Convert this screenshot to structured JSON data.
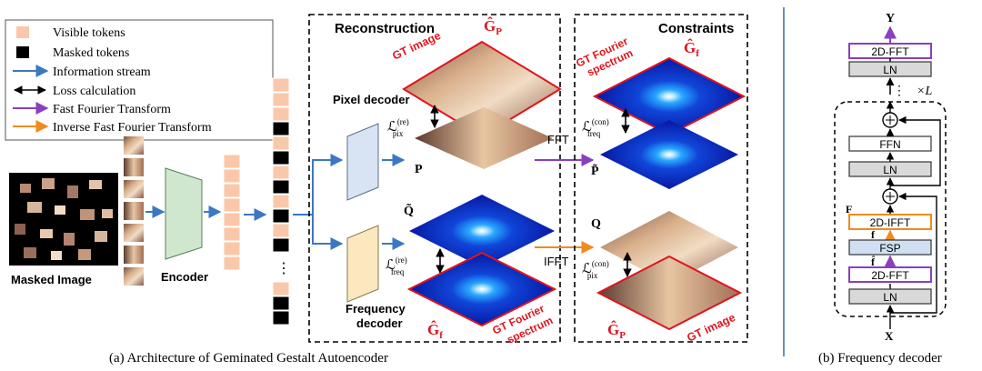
{
  "legend": {
    "visible_tokens": "Visible tokens",
    "masked_tokens": "Masked tokens",
    "information_stream": "Information stream",
    "loss_calculation": "Loss calculation",
    "fft": "Fast Fourier Transform",
    "ifft": "Inverse Fast Fourier Transform"
  },
  "labels": {
    "masked_image": "Masked Image",
    "encoder": "Encoder",
    "reconstruction": "Reconstruction",
    "constraints": "Constraints",
    "pixel_decoder": "Pixel decoder",
    "frequency_decoder_line1": "Frequency",
    "frequency_decoder_line2": "decoder",
    "gt_image": "GT image",
    "gt_fourier_line1": "GT Fourier",
    "gt_fourier_line2": "spectrum",
    "fft_arrow": "FFT",
    "ifft_arrow": "IFFT",
    "ellipsis": "⋮",
    "times_l": "×L"
  },
  "math": {
    "G_p": "Ĝ",
    "G_p_sub": "P",
    "G_f": "Ĝ",
    "G_f_sub": "f",
    "P": "P",
    "P_tilde": "P̃",
    "Q": "Q",
    "Q_tilde": "Q̃",
    "L": "ℒ",
    "pix_re_sup": "(re)",
    "pix_sub": "pix",
    "freq_re_sup": "(re)",
    "freq_sub": "freq",
    "freq_con_sup": "(con)",
    "pix_con_sup": "(con)",
    "F": "F",
    "f": "f",
    "f_hat": "f̂",
    "X": "X",
    "Y": "Y"
  },
  "freq_decoder": {
    "blocks": [
      "2D-FFT",
      "LN",
      "FFN",
      "LN",
      "2D-IFFT",
      "FSP",
      "2D-FFT",
      "LN"
    ]
  },
  "captions": {
    "a": "(a) Architecture of Geminated Gestalt Autoencoder",
    "b": "(b) Frequency decoder"
  },
  "colors": {
    "token_visible": "#f9c8aa",
    "token_masked": "#000000",
    "info_arrow": "#3b78c4",
    "fft_arrow": "#8a3fbf",
    "ifft_arrow": "#f08a1e",
    "red_label": "#e0141e",
    "encoder_fill": "#cfe6cf",
    "pixel_decoder_fill": "#d8e4f3",
    "freq_decoder_fill": "#fbe8bf",
    "fsp_fill": "#cfe0f2",
    "ln_fill": "#d9d9d9"
  }
}
